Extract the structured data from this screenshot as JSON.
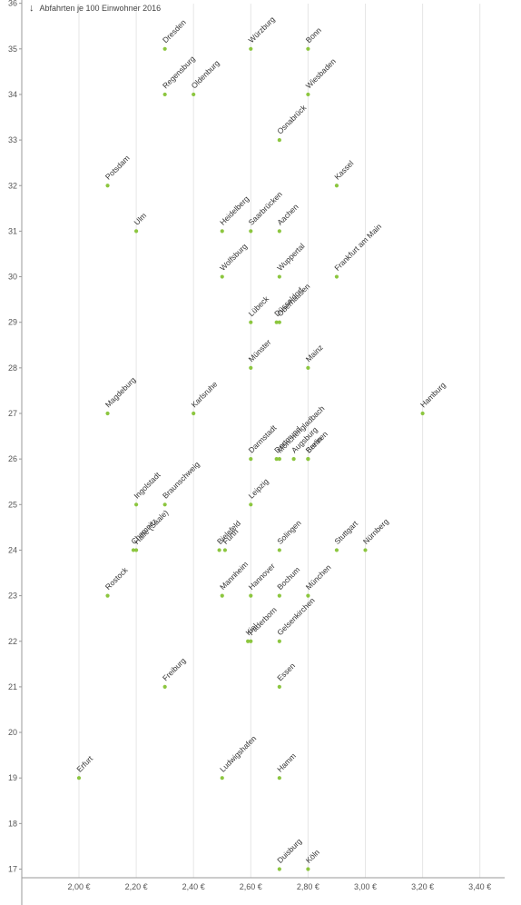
{
  "chart_data": {
    "type": "scatter",
    "title": "",
    "ylabel": "Abfahrten je 100 Einwohner 2016",
    "xlabel": "",
    "xlim": [
      1.8,
      3.4
    ],
    "ylim": [
      16.8,
      36
    ],
    "x_ticks": [
      {
        "value": 2.0,
        "label": "2,00 €"
      },
      {
        "value": 2.2,
        "label": "2,20 €"
      },
      {
        "value": 2.4,
        "label": "2,40 €"
      },
      {
        "value": 2.6,
        "label": "2,60 €"
      },
      {
        "value": 2.8,
        "label": "2,80 €"
      },
      {
        "value": 3.0,
        "label": "3,00 €"
      },
      {
        "value": 3.2,
        "label": "3,20 €"
      },
      {
        "value": 3.4,
        "label": "3,40 €"
      }
    ],
    "y_ticks": [
      17,
      18,
      19,
      20,
      21,
      22,
      23,
      24,
      25,
      26,
      27,
      28,
      29,
      30,
      31,
      32,
      33,
      34,
      35,
      36
    ],
    "grid": "vertical",
    "point_color": "#8cc63f",
    "points": [
      {
        "name": "Dresden",
        "x": 2.3,
        "y": 35
      },
      {
        "name": "Würzburg",
        "x": 2.6,
        "y": 35
      },
      {
        "name": "Bonn",
        "x": 2.8,
        "y": 35
      },
      {
        "name": "Regensburg",
        "x": 2.3,
        "y": 34
      },
      {
        "name": "Oldenburg",
        "x": 2.4,
        "y": 34
      },
      {
        "name": "Wiesbaden",
        "x": 2.8,
        "y": 34
      },
      {
        "name": "Osnabrück",
        "x": 2.7,
        "y": 33
      },
      {
        "name": "Potsdam",
        "x": 2.1,
        "y": 32
      },
      {
        "name": "Kassel",
        "x": 2.9,
        "y": 32
      },
      {
        "name": "Ulm",
        "x": 2.2,
        "y": 31
      },
      {
        "name": "Heidelberg",
        "x": 2.5,
        "y": 31
      },
      {
        "name": "Saarbrücken",
        "x": 2.6,
        "y": 31
      },
      {
        "name": "Aachen",
        "x": 2.7,
        "y": 31
      },
      {
        "name": "Wolfsburg",
        "x": 2.5,
        "y": 30
      },
      {
        "name": "Wuppertal",
        "x": 2.7,
        "y": 30
      },
      {
        "name": "Frankfurt am Main",
        "x": 2.9,
        "y": 30
      },
      {
        "name": "Lübeck",
        "x": 2.6,
        "y": 29
      },
      {
        "name": "Düsseldorf",
        "x": 2.69,
        "y": 29
      },
      {
        "name": "Oberhausen",
        "x": 2.7,
        "y": 29
      },
      {
        "name": "Münster",
        "x": 2.6,
        "y": 28
      },
      {
        "name": "Mainz",
        "x": 2.8,
        "y": 28
      },
      {
        "name": "Magdeburg",
        "x": 2.1,
        "y": 27
      },
      {
        "name": "Karlsruhe",
        "x": 2.4,
        "y": 27
      },
      {
        "name": "Hamburg",
        "x": 3.2,
        "y": 27
      },
      {
        "name": "Darmstadt",
        "x": 2.6,
        "y": 26
      },
      {
        "name": "Dortmund",
        "x": 2.69,
        "y": 26
      },
      {
        "name": "Mönchengladbach",
        "x": 2.7,
        "y": 26
      },
      {
        "name": "Augsburg",
        "x": 2.75,
        "y": 26
      },
      {
        "name": "Bremen",
        "x": 2.8,
        "y": 26
      },
      {
        "name": "Berlin",
        "x": 2.8,
        "y": 26
      },
      {
        "name": "Ingolstadt",
        "x": 2.2,
        "y": 25
      },
      {
        "name": "Braunschweig",
        "x": 2.3,
        "y": 25
      },
      {
        "name": "Leipzig",
        "x": 2.6,
        "y": 25
      },
      {
        "name": "Chemnitz",
        "x": 2.19,
        "y": 24
      },
      {
        "name": "Halle (Saale)",
        "x": 2.2,
        "y": 24
      },
      {
        "name": "Bielefeld",
        "x": 2.49,
        "y": 24
      },
      {
        "name": "Fürth",
        "x": 2.51,
        "y": 24
      },
      {
        "name": "Solingen",
        "x": 2.7,
        "y": 24
      },
      {
        "name": "Stuttgart",
        "x": 2.9,
        "y": 24
      },
      {
        "name": "Nürnberg",
        "x": 3.0,
        "y": 24
      },
      {
        "name": "Rostock",
        "x": 2.1,
        "y": 23
      },
      {
        "name": "Mannheim",
        "x": 2.5,
        "y": 23
      },
      {
        "name": "Hannover",
        "x": 2.6,
        "y": 23
      },
      {
        "name": "Bochum",
        "x": 2.7,
        "y": 23
      },
      {
        "name": "München",
        "x": 2.8,
        "y": 23
      },
      {
        "name": "Kiel",
        "x": 2.59,
        "y": 22
      },
      {
        "name": "Paderborn",
        "x": 2.6,
        "y": 22
      },
      {
        "name": "Gelsenkirchen",
        "x": 2.7,
        "y": 22
      },
      {
        "name": "Freiburg",
        "x": 2.3,
        "y": 21
      },
      {
        "name": "Essen",
        "x": 2.7,
        "y": 21
      },
      {
        "name": "Erfurt",
        "x": 2.0,
        "y": 19
      },
      {
        "name": "Ludwigshafen",
        "x": 2.5,
        "y": 19
      },
      {
        "name": "Hamm",
        "x": 2.7,
        "y": 19
      },
      {
        "name": "Duisburg",
        "x": 2.7,
        "y": 17
      },
      {
        "name": "Köln",
        "x": 2.8,
        "y": 17
      }
    ]
  }
}
